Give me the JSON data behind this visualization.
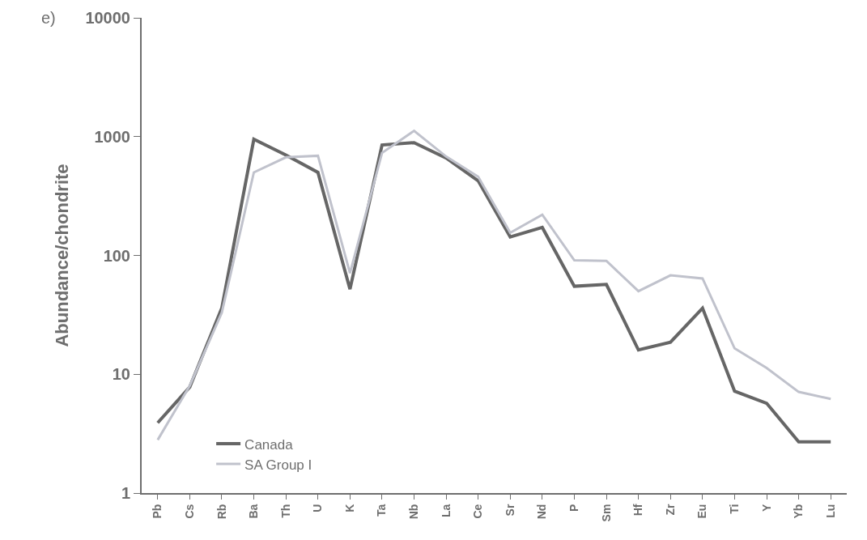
{
  "chart_data": {
    "type": "line",
    "ylabel": "Abundance/chondrite",
    "annotations": [
      "e)"
    ],
    "categories": [
      "Pb",
      "Cs",
      "Rb",
      "Ba",
      "Th",
      "U",
      "K",
      "Ta",
      "Nb",
      "La",
      "Ce",
      "Sr",
      "Nd",
      "P",
      "Sm",
      "Hf",
      "Zr",
      "Eu",
      "Ti",
      "Y",
      "Yb",
      "Lu"
    ],
    "series": [
      {
        "name": "Canada",
        "color": "#666666",
        "values": [
          3.9,
          7.8,
          36,
          950,
          700,
          500,
          52,
          850,
          890,
          660,
          425,
          143,
          172,
          55,
          57,
          16,
          18.6,
          36,
          7.2,
          5.7,
          2.7,
          2.7
        ]
      },
      {
        "name": "SA Group I",
        "color": "#c0c2cc",
        "values": [
          2.8,
          8,
          33,
          500,
          670,
          690,
          71,
          730,
          1120,
          680,
          460,
          155,
          220,
          91,
          90,
          50,
          68,
          64,
          16.5,
          11.3,
          7.1,
          6.2
        ]
      }
    ],
    "log": true,
    "ylim": [
      1,
      10000
    ],
    "yticks": [
      1,
      10,
      100,
      1000,
      10000
    ],
    "legend": "bottom left",
    "marker": "none",
    "line_style": "solid"
  }
}
